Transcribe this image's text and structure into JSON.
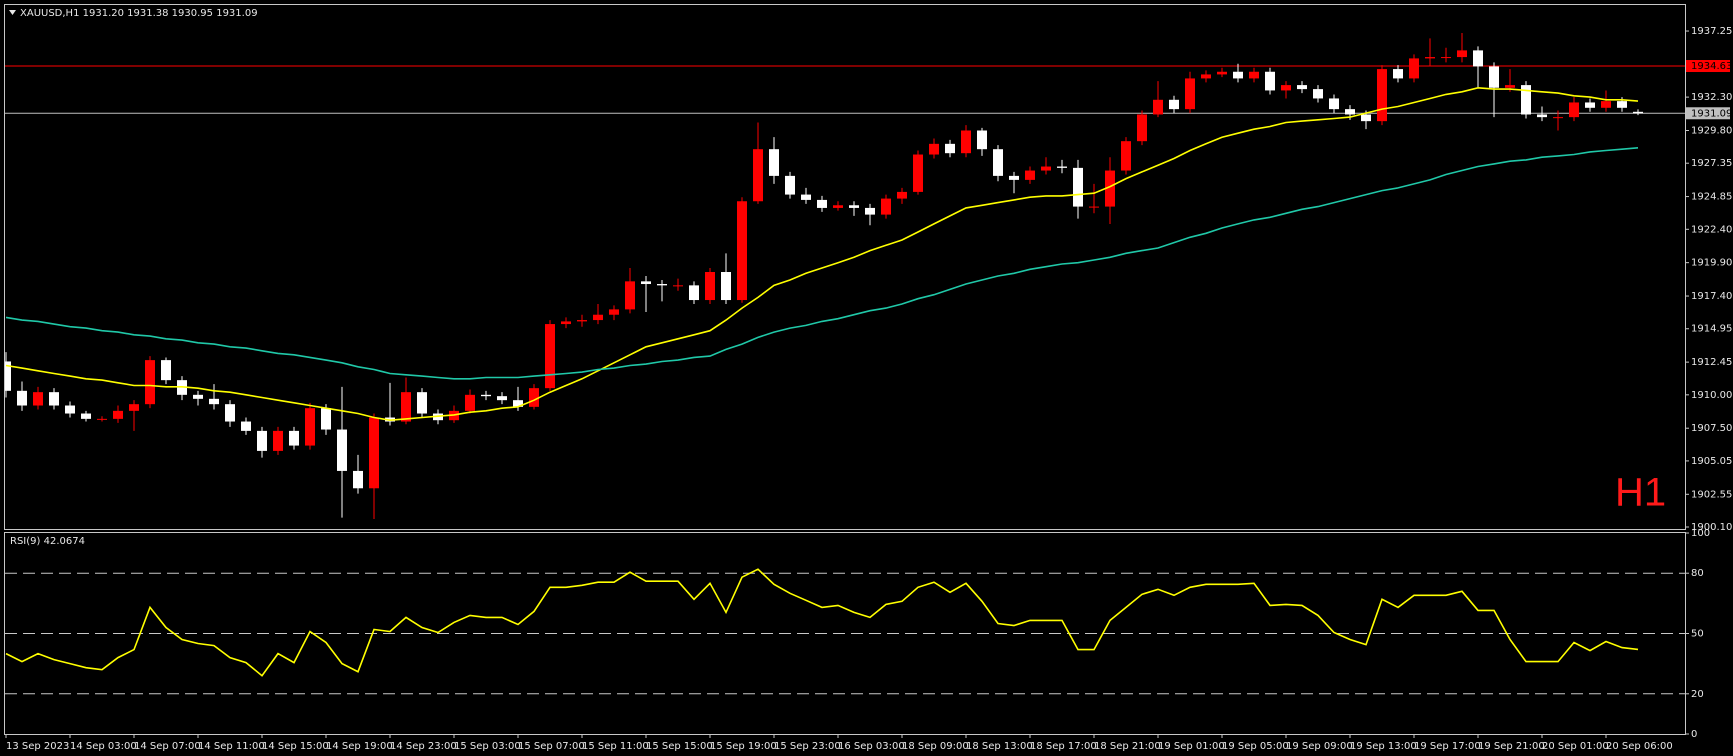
{
  "chart_data": [
    {
      "type": "candlestick",
      "title": "XAUUSD,H1  1931.20 1931.38 1930.95 1931.09",
      "annotation": "H1",
      "up_color": "#ff0000",
      "down_color": "#ffffff",
      "ylim": [
        1899.95,
        1939.2
      ],
      "yticks": [
        1937.25,
        {
          "value": 1932.3,
          "label": "1932.30"
        },
        {
          "value": 1929.8,
          "label": "1929.80"
        },
        1927.35,
        1924.85,
        {
          "value": 1922.4,
          "label": "1922.40"
        },
        {
          "value": 1919.9,
          "label": "1919.90"
        },
        {
          "value": 1917.4,
          "label": "1917.40"
        },
        1914.95,
        1912.45,
        {
          "value": 1910.0,
          "label": "1910.00"
        },
        {
          "value": 1907.5,
          "label": "1907.50"
        },
        1905.05,
        1902.55,
        {
          "value": 1900.1,
          "label": "1900.10"
        }
      ],
      "hlines": [
        {
          "value": 1934.63,
          "color": "#ff0000"
        },
        {
          "value": 1931.09,
          "color": "#c0c0c0"
        }
      ],
      "grid": false,
      "categories": [
        "13 Sep 2023",
        null,
        null,
        null,
        "14 Sep 03:00",
        null,
        null,
        null,
        "14 Sep 07:00",
        null,
        null,
        null,
        "14 Sep 11:00",
        null,
        null,
        null,
        "14 Sep 15:00",
        null,
        null,
        null,
        "14 Sep 19:00",
        null,
        null,
        null,
        "14 Sep 23:00",
        null,
        null,
        null,
        "15 Sep 03:00",
        null,
        null,
        null,
        "15 Sep 07:00",
        null,
        null,
        null,
        "15 Sep 11:00",
        null,
        null,
        null,
        "15 Sep 15:00",
        null,
        null,
        null,
        "15 Sep 19:00",
        null,
        null,
        null,
        "15 Sep 23:00",
        null,
        null,
        null,
        "16 Sep 03:00",
        null,
        null,
        null,
        "18 Sep 09:00",
        null,
        null,
        null,
        "18 Sep 13:00",
        null,
        null,
        null,
        "18 Sep 17:00",
        null,
        null,
        null,
        "18 Sep 21:00",
        null,
        null,
        null,
        "19 Sep 01:00",
        null,
        null,
        null,
        "19 Sep 05:00",
        null,
        null,
        null,
        "19 Sep 09:00",
        null,
        null,
        null,
        "19 Sep 13:00",
        null,
        null,
        null,
        "19 Sep 17:00",
        null,
        null,
        null,
        "19 Sep 21:00",
        null,
        null,
        null,
        "20 Sep 01:00",
        null,
        null,
        null,
        "20 Sep 06:00",
        null,
        null
      ],
      "open": [
        1912.5,
        1910.3,
        1909.2,
        1910.2,
        1909.2,
        1908.6,
        1908.2,
        1908.2,
        1908.8,
        1909.3,
        1912.6,
        1911.1,
        1910.0,
        1909.7,
        1909.3,
        1908.0,
        1907.3,
        1905.8,
        1907.3,
        1906.2,
        1909.0,
        1907.4,
        1904.3,
        1903.0,
        1908.3,
        1908.0,
        1910.2,
        1908.6,
        1908.1,
        1908.8,
        1910.0,
        1909.9,
        1909.6,
        1909.1,
        1910.5,
        1915.3,
        1915.5,
        1915.6,
        1916.0,
        1916.4,
        1918.5,
        1918.3,
        1918.2,
        1918.2,
        1917.1,
        1919.2,
        1917.1,
        1924.5,
        1928.4,
        1926.4,
        1925.0,
        1924.6,
        1924.0,
        1924.2,
        1924.0,
        1923.5,
        1924.7,
        1925.2,
        1928.0,
        1928.8,
        1928.1,
        1929.8,
        1928.4,
        1926.4,
        1926.1,
        1926.8,
        1927.1,
        1927.0,
        1924.1,
        1924.1,
        1926.8,
        1929.0,
        1931.0,
        1932.1,
        1931.4,
        1933.7,
        1934.0,
        1934.2,
        1933.7,
        1934.2,
        1932.8,
        1933.2,
        1932.9,
        1932.2,
        1931.4,
        1931.0,
        1930.5,
        1934.4,
        1933.7,
        1935.2,
        1935.3,
        1935.3,
        1935.8,
        1934.6,
        1933.0,
        1933.2,
        1931.0,
        1930.8,
        1930.8,
        1931.9,
        1931.5,
        1932.0,
        1931.2
      ],
      "high": [
        1913.2,
        1911.0,
        1910.6,
        1910.5,
        1909.5,
        1908.8,
        1908.4,
        1909.2,
        1909.6,
        1912.9,
        1912.8,
        1911.4,
        1910.3,
        1910.8,
        1909.6,
        1908.3,
        1907.6,
        1907.6,
        1907.6,
        1909.4,
        1909.3,
        1910.6,
        1905.5,
        1908.6,
        1910.9,
        1911.3,
        1910.5,
        1908.9,
        1909.2,
        1910.4,
        1910.3,
        1910.2,
        1910.6,
        1910.8,
        1915.6,
        1915.8,
        1916.0,
        1916.8,
        1916.7,
        1919.5,
        1918.9,
        1918.6,
        1918.7,
        1918.5,
        1919.5,
        1920.6,
        1924.8,
        1930.4,
        1929.3,
        1926.7,
        1925.5,
        1924.9,
        1924.5,
        1924.5,
        1924.3,
        1925.0,
        1925.5,
        1928.3,
        1929.2,
        1929.1,
        1930.2,
        1930.0,
        1928.7,
        1926.7,
        1927.1,
        1927.8,
        1927.6,
        1927.6,
        1925.8,
        1927.8,
        1929.3,
        1931.3,
        1933.5,
        1932.4,
        1934.2,
        1934.3,
        1934.5,
        1934.8,
        1934.5,
        1934.5,
        1933.5,
        1933.5,
        1933.2,
        1932.5,
        1931.7,
        1931.3,
        1934.7,
        1934.7,
        1935.5,
        1936.7,
        1936.0,
        1937.1,
        1936.1,
        1934.9,
        1934.4,
        1933.5,
        1931.6,
        1931.3,
        1932.3,
        1932.2,
        1932.8,
        1932.3,
        1931.38
      ],
      "low": [
        1909.8,
        1908.8,
        1908.9,
        1908.9,
        1908.3,
        1908.0,
        1908.0,
        1907.9,
        1907.3,
        1909.0,
        1910.8,
        1909.6,
        1909.2,
        1908.9,
        1907.6,
        1907.0,
        1905.3,
        1905.5,
        1905.9,
        1905.9,
        1907.0,
        1900.8,
        1902.6,
        1900.7,
        1907.7,
        1907.8,
        1908.3,
        1907.8,
        1907.9,
        1908.6,
        1909.6,
        1909.3,
        1908.8,
        1908.9,
        1910.3,
        1915.0,
        1915.1,
        1915.3,
        1915.6,
        1916.1,
        1916.2,
        1917.0,
        1917.8,
        1916.8,
        1916.8,
        1916.8,
        1916.9,
        1924.3,
        1925.8,
        1924.7,
        1924.3,
        1923.7,
        1923.8,
        1923.4,
        1922.7,
        1923.2,
        1924.3,
        1925.0,
        1927.7,
        1927.8,
        1927.8,
        1927.9,
        1926.0,
        1925.1,
        1925.8,
        1926.5,
        1926.6,
        1923.2,
        1923.6,
        1922.8,
        1926.5,
        1928.7,
        1930.8,
        1931.1,
        1931.1,
        1933.4,
        1933.8,
        1933.4,
        1933.4,
        1932.5,
        1932.2,
        1932.6,
        1931.9,
        1931.1,
        1930.6,
        1929.9,
        1930.2,
        1933.4,
        1933.4,
        1934.6,
        1934.9,
        1934.9,
        1933.0,
        1930.8,
        1932.7,
        1930.7,
        1930.5,
        1929.8,
        1930.5,
        1931.2,
        1931.2,
        1931.2,
        1930.95
      ],
      "close": [
        1910.3,
        1909.2,
        1910.2,
        1909.2,
        1908.6,
        1908.2,
        1908.2,
        1908.8,
        1909.3,
        1912.6,
        1911.1,
        1910.0,
        1909.7,
        1909.3,
        1908.0,
        1907.3,
        1905.8,
        1907.3,
        1906.2,
        1909.0,
        1907.4,
        1904.3,
        1903.0,
        1908.3,
        1908.0,
        1910.2,
        1908.6,
        1908.1,
        1908.8,
        1910.0,
        1909.9,
        1909.6,
        1909.1,
        1910.5,
        1915.3,
        1915.5,
        1915.6,
        1916.0,
        1916.4,
        1918.5,
        1918.3,
        1918.2,
        1918.2,
        1917.1,
        1919.2,
        1917.1,
        1924.5,
        1928.4,
        1926.4,
        1925.0,
        1924.6,
        1924.0,
        1924.2,
        1924.0,
        1923.5,
        1924.7,
        1925.2,
        1928.0,
        1928.8,
        1928.1,
        1929.8,
        1928.4,
        1926.4,
        1926.1,
        1926.8,
        1927.1,
        1927.0,
        1924.1,
        1924.1,
        1926.8,
        1929.0,
        1931.0,
        1932.1,
        1931.4,
        1933.7,
        1934.0,
        1934.2,
        1933.7,
        1934.2,
        1932.8,
        1933.2,
        1932.9,
        1932.2,
        1931.4,
        1931.0,
        1930.5,
        1934.4,
        1933.7,
        1935.2,
        1935.3,
        1935.3,
        1935.8,
        1934.6,
        1933.0,
        1933.2,
        1931.0,
        1930.8,
        1930.8,
        1931.9,
        1931.5,
        1932.0,
        1931.5,
        1931.09
      ],
      "series": [
        {
          "color": "#ffff00",
          "values": [
            1912.2,
            1912.0,
            1911.8,
            1911.6,
            1911.4,
            1911.2,
            1911.1,
            1910.9,
            1910.7,
            1910.7,
            1910.6,
            1910.6,
            1910.5,
            1910.3,
            1910.2,
            1910.0,
            1909.8,
            1909.6,
            1909.4,
            1909.2,
            1909.0,
            1908.8,
            1908.6,
            1908.3,
            1908.1,
            1908.2,
            1908.3,
            1908.4,
            1908.5,
            1908.7,
            1908.8,
            1909.0,
            1909.1,
            1909.6,
            1910.2,
            1910.7,
            1911.2,
            1911.8,
            1912.4,
            1913.0,
            1913.6,
            1913.9,
            1914.2,
            1914.5,
            1914.8,
            1915.6,
            1916.5,
            1917.3,
            1918.2,
            1918.6,
            1919.1,
            1919.5,
            1919.9,
            1920.3,
            1920.8,
            1921.2,
            1921.6,
            1922.2,
            1922.8,
            1923.4,
            1924.0,
            1924.2,
            1924.4,
            1924.6,
            1924.8,
            1924.9,
            1924.9,
            1925.0,
            1925.1,
            1925.6,
            1926.2,
            1926.7,
            1927.2,
            1927.7,
            1928.3,
            1928.8,
            1929.3,
            1929.6,
            1929.9,
            1930.1,
            1930.4,
            1930.5,
            1930.6,
            1930.7,
            1930.8,
            1931.1,
            1931.4,
            1931.6,
            1931.9,
            1932.2,
            1932.5,
            1932.7,
            1933.0,
            1932.9,
            1932.9,
            1932.8,
            1932.7,
            1932.6,
            1932.4,
            1932.3,
            1932.1,
            1932.1,
            1932.0
          ]
        },
        {
          "color": "#20c8a8",
          "values": [
            1915.8,
            1915.6,
            1915.5,
            1915.3,
            1915.1,
            1915.0,
            1914.8,
            1914.7,
            1914.5,
            1914.4,
            1914.2,
            1914.1,
            1913.9,
            1913.8,
            1913.6,
            1913.5,
            1913.3,
            1913.1,
            1913.0,
            1912.8,
            1912.6,
            1912.4,
            1912.1,
            1911.9,
            1911.6,
            1911.5,
            1911.4,
            1911.3,
            1911.2,
            1911.2,
            1911.3,
            1911.3,
            1911.3,
            1911.4,
            1911.5,
            1911.6,
            1911.7,
            1911.9,
            1912.0,
            1912.2,
            1912.3,
            1912.5,
            1912.6,
            1912.8,
            1912.9,
            1913.4,
            1913.8,
            1914.3,
            1914.7,
            1915.0,
            1915.2,
            1915.5,
            1915.7,
            1916.0,
            1916.3,
            1916.5,
            1916.8,
            1917.2,
            1917.5,
            1917.9,
            1918.3,
            1918.6,
            1918.9,
            1919.1,
            1919.4,
            1919.6,
            1919.8,
            1919.9,
            1920.1,
            1920.3,
            1920.6,
            1920.8,
            1921.0,
            1921.4,
            1921.8,
            1922.1,
            1922.5,
            1922.8,
            1923.1,
            1923.3,
            1923.6,
            1923.9,
            1924.1,
            1924.4,
            1924.7,
            1925.0,
            1925.3,
            1925.5,
            1925.8,
            1926.1,
            1926.5,
            1926.8,
            1927.1,
            1927.3,
            1927.5,
            1927.6,
            1927.8,
            1927.9,
            1928.0,
            1928.2,
            1928.3,
            1928.4,
            1928.5
          ]
        }
      ]
    },
    {
      "type": "line",
      "title": "RSI(9) 42.0674",
      "ylim": [
        0,
        100
      ],
      "yticks": [
        0,
        20,
        50,
        80,
        100
      ],
      "grid": true,
      "series": [
        {
          "color": "#ffff00",
          "values": [
            40,
            36,
            40,
            37,
            35,
            33,
            32,
            38,
            42,
            63,
            53,
            47,
            45,
            44,
            38,
            35.5,
            29,
            40,
            35.5,
            51,
            45.5,
            35,
            31,
            52,
            51,
            58,
            53,
            50.5,
            55.5,
            59,
            58,
            58,
            54.5,
            61,
            73,
            73,
            74,
            75.5,
            75.5,
            80.5,
            76,
            76,
            76,
            67,
            75,
            60.5,
            78,
            82,
            74.5,
            70,
            66.5,
            63,
            64,
            60.5,
            58,
            64.5,
            66,
            73,
            75.5,
            70.5,
            75,
            66,
            55,
            54,
            56.5,
            56.5,
            56.5,
            42,
            42,
            56.5,
            63,
            69.5,
            72,
            69,
            73,
            74.5,
            74.5,
            74.5,
            75,
            64,
            64.5,
            64,
            59,
            50.5,
            47,
            44.5,
            67,
            63,
            69,
            69,
            69,
            71,
            61.5,
            61.5,
            47,
            36,
            36,
            36,
            45.5,
            41.5,
            46,
            43,
            42.0674
          ]
        }
      ]
    }
  ]
}
